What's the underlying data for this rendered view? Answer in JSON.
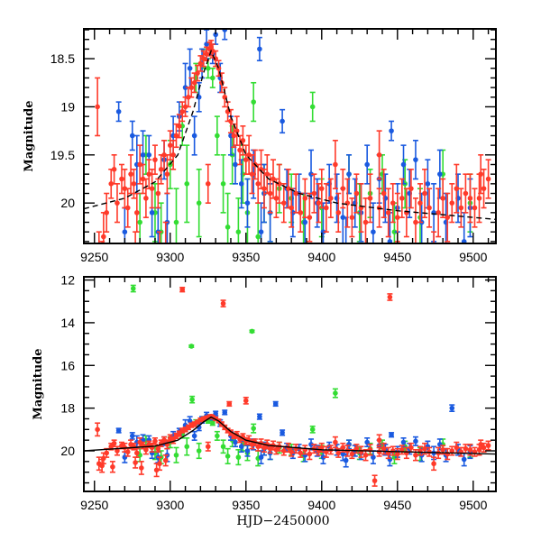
{
  "chart_data": [
    {
      "type": "scatter",
      "panel": "top",
      "title": "",
      "xlabel": "",
      "ylabel": "Magnitude",
      "xlim": [
        9243,
        9515
      ],
      "ylim": [
        20.42,
        18.19
      ],
      "y_inverted": true,
      "x_ticks": [
        9250,
        9300,
        9350,
        9400,
        9450,
        9500
      ],
      "x_tick_labels": [
        "9250",
        "9300",
        "9350",
        "9400",
        "9450",
        "9500"
      ],
      "y_ticks": [
        18.5,
        19,
        19.5,
        20
      ],
      "y_tick_labels": [
        "18.5",
        "19",
        "19.5",
        "20"
      ],
      "grid": false,
      "fit_line": {
        "name": "model",
        "style": "dashed-black",
        "x": [
          9243,
          9270,
          9290,
          9305,
          9315,
          9322,
          9327,
          9332,
          9340,
          9350,
          9365,
          9385,
          9410,
          9450,
          9515
        ],
        "y": [
          20.06,
          19.95,
          19.78,
          19.5,
          19.05,
          18.65,
          18.42,
          18.6,
          19.1,
          19.5,
          19.75,
          19.9,
          20.0,
          20.08,
          20.17
        ]
      }
    },
    {
      "type": "scatter",
      "panel": "bottom",
      "title": "",
      "xlabel": "HJD−2450000",
      "ylabel": "Magnitude",
      "xlim": [
        9243,
        9515
      ],
      "ylim": [
        21.9,
        11.85
      ],
      "y_inverted": true,
      "x_ticks": [
        9250,
        9300,
        9350,
        9400,
        9450,
        9500
      ],
      "x_tick_labels": [
        "9250",
        "9300",
        "9350",
        "9400",
        "9450",
        "9500"
      ],
      "y_ticks": [
        12,
        14,
        16,
        18,
        20
      ],
      "y_tick_labels": [
        "12",
        "14",
        "16",
        "18",
        "20"
      ],
      "grid": false,
      "fit_line": {
        "name": "model",
        "style": "solid-black",
        "x": [
          9243,
          9290,
          9305,
          9315,
          9322,
          9327,
          9332,
          9340,
          9350,
          9365,
          9400,
          9515
        ],
        "y": [
          20.0,
          19.78,
          19.5,
          19.05,
          18.65,
          18.42,
          18.6,
          19.1,
          19.5,
          19.75,
          19.95,
          20.15
        ]
      }
    }
  ],
  "series": [
    {
      "name": "red",
      "color": "#ff3a2a",
      "points": [
        [
          9252,
          19.0,
          0.3
        ],
        [
          9256,
          20.35,
          0.25
        ],
        [
          9258,
          20.1,
          0.2
        ],
        [
          9261,
          19.8,
          0.15
        ],
        [
          9263,
          19.65,
          0.15
        ],
        [
          9265,
          20.0,
          0.2
        ],
        [
          9268,
          19.75,
          0.15
        ],
        [
          9270,
          19.85,
          0.2
        ],
        [
          9272,
          20.05,
          0.2
        ],
        [
          9274,
          19.7,
          0.2
        ],
        [
          9276,
          19.8,
          0.15
        ],
        [
          9278,
          20.1,
          0.2
        ],
        [
          9280,
          19.6,
          0.2
        ],
        [
          9282,
          19.75,
          0.15
        ],
        [
          9284,
          19.95,
          0.2
        ],
        [
          9286,
          19.7,
          0.15
        ],
        [
          9288,
          19.85,
          0.2
        ],
        [
          9290,
          19.55,
          0.15
        ],
        [
          9292,
          19.9,
          0.15
        ],
        [
          9294,
          19.65,
          0.15
        ],
        [
          9296,
          19.5,
          0.15
        ],
        [
          9298,
          19.7,
          0.2
        ],
        [
          9300,
          19.4,
          0.15
        ],
        [
          9302,
          19.5,
          0.15
        ],
        [
          9304,
          19.3,
          0.12
        ],
        [
          9306,
          19.2,
          0.12
        ],
        [
          9308,
          19.05,
          0.1
        ],
        [
          9310,
          19.0,
          0.1
        ],
        [
          9312,
          18.9,
          0.1
        ],
        [
          9314,
          18.8,
          0.1
        ],
        [
          9316,
          18.75,
          0.1
        ],
        [
          9318,
          18.65,
          0.08
        ],
        [
          9320,
          18.55,
          0.08
        ],
        [
          9322,
          18.5,
          0.08
        ],
        [
          9324,
          18.45,
          0.07
        ],
        [
          9326,
          18.4,
          0.07
        ],
        [
          9327,
          18.38,
          0.07
        ],
        [
          9328,
          18.42,
          0.07
        ],
        [
          9330,
          18.5,
          0.08
        ],
        [
          9332,
          18.6,
          0.08
        ],
        [
          9334,
          18.75,
          0.1
        ],
        [
          9336,
          18.9,
          0.1
        ],
        [
          9338,
          19.05,
          0.1
        ],
        [
          9340,
          19.15,
          0.12
        ],
        [
          9342,
          19.3,
          0.12
        ],
        [
          9344,
          19.25,
          0.15
        ],
        [
          9346,
          19.45,
          0.15
        ],
        [
          9348,
          19.35,
          0.15
        ],
        [
          9350,
          19.55,
          0.15
        ],
        [
          9352,
          19.5,
          0.2
        ],
        [
          9354,
          19.7,
          0.2
        ],
        [
          9356,
          19.6,
          0.15
        ],
        [
          9358,
          19.8,
          0.2
        ],
        [
          9360,
          19.65,
          0.2
        ],
        [
          9362,
          19.85,
          0.2
        ],
        [
          9364,
          19.7,
          0.2
        ],
        [
          9366,
          19.9,
          0.2
        ],
        [
          9368,
          19.75,
          0.2
        ],
        [
          9370,
          19.95,
          0.2
        ],
        [
          9372,
          19.8,
          0.2
        ],
        [
          9375,
          20.0,
          0.2
        ],
        [
          9378,
          19.85,
          0.2
        ],
        [
          9380,
          20.05,
          0.2
        ],
        [
          9383,
          19.9,
          0.2
        ],
        [
          9386,
          20.1,
          0.2
        ],
        [
          9389,
          19.95,
          0.2
        ],
        [
          9392,
          20.15,
          0.25
        ],
        [
          9395,
          19.9,
          0.2
        ],
        [
          9398,
          20.0,
          0.2
        ],
        [
          9400,
          19.85,
          0.2
        ],
        [
          9403,
          20.05,
          0.25
        ],
        [
          9406,
          19.95,
          0.2
        ],
        [
          9409,
          19.6,
          0.25
        ],
        [
          9411,
          20.1,
          0.2
        ],
        [
          9414,
          19.85,
          0.2
        ],
        [
          9417,
          20.0,
          0.25
        ],
        [
          9420,
          20.15,
          0.2
        ],
        [
          9423,
          19.9,
          0.2
        ],
        [
          9426,
          20.05,
          0.25
        ],
        [
          9429,
          20.2,
          0.25
        ],
        [
          9432,
          19.95,
          0.25
        ],
        [
          9435,
          21.4,
          0.25
        ],
        [
          9438,
          20.05,
          0.2
        ],
        [
          9441,
          19.9,
          0.25
        ],
        [
          9444,
          20.1,
          0.25
        ],
        [
          9447,
          20.0,
          0.2
        ],
        [
          9450,
          20.15,
          0.25
        ],
        [
          9453,
          19.95,
          0.2
        ],
        [
          9456,
          20.1,
          0.25
        ],
        [
          9459,
          19.85,
          0.2
        ],
        [
          9462,
          20.2,
          0.25
        ],
        [
          9465,
          20.0,
          0.2
        ],
        [
          9468,
          19.9,
          0.25
        ],
        [
          9471,
          20.05,
          0.2
        ],
        [
          9474,
          20.6,
          0.3
        ],
        [
          9477,
          20.1,
          0.25
        ],
        [
          9480,
          19.95,
          0.2
        ],
        [
          9483,
          20.15,
          0.25
        ],
        [
          9486,
          20.0,
          0.2
        ],
        [
          9489,
          19.85,
          0.25
        ],
        [
          9492,
          20.05,
          0.2
        ],
        [
          9495,
          19.9,
          0.2
        ],
        [
          9498,
          19.95,
          0.25
        ],
        [
          9501,
          20.05,
          0.2
        ],
        [
          9504,
          19.95,
          0.25
        ],
        [
          9507,
          19.85,
          0.2
        ],
        [
          9510,
          19.75,
          0.2
        ],
        [
          9253,
          20.6,
          0.3
        ],
        [
          9255,
          20.7,
          0.3
        ],
        [
          9262,
          20.75,
          0.25
        ],
        [
          9277,
          20.55,
          0.25
        ],
        [
          9281,
          20.8,
          0.3
        ],
        [
          9291,
          20.9,
          0.3
        ],
        [
          9293,
          20.6,
          0.3
        ],
        [
          9297,
          20.45,
          0.25
        ],
        [
          9308,
          12.45,
          0.1
        ],
        [
          9335,
          13.1,
          0.15
        ],
        [
          9339,
          17.8,
          0.1
        ],
        [
          9350,
          17.65,
          0.15
        ],
        [
          9445,
          12.8,
          0.15
        ],
        [
          9325,
          19.8,
          0.2
        ],
        [
          9438,
          19.5,
          0.25
        ],
        [
          9505,
          19.7,
          0.2
        ]
      ]
    },
    {
      "name": "blue",
      "color": "#1a5ae0",
      "points": [
        [
          9266,
          19.05,
          0.1
        ],
        [
          9270,
          20.3,
          0.25
        ],
        [
          9275,
          19.3,
          0.15
        ],
        [
          9278,
          19.6,
          0.3
        ],
        [
          9282,
          19.5,
          0.25
        ],
        [
          9286,
          19.5,
          0.2
        ],
        [
          9288,
          20.1,
          0.25
        ],
        [
          9292,
          20.3,
          0.25
        ],
        [
          9296,
          19.55,
          0.2
        ],
        [
          9298,
          20.2,
          0.3
        ],
        [
          9302,
          19.3,
          0.2
        ],
        [
          9306,
          19.1,
          0.15
        ],
        [
          9310,
          18.8,
          0.25
        ],
        [
          9313,
          18.6,
          0.2
        ],
        [
          9316,
          19.3,
          0.2
        ],
        [
          9319,
          18.9,
          0.15
        ],
        [
          9321,
          18.55,
          0.15
        ],
        [
          9324,
          18.35,
          0.15
        ],
        [
          9328,
          18.45,
          0.1
        ],
        [
          9333,
          18.7,
          0.15
        ],
        [
          9336,
          18.2,
          0.1
        ],
        [
          9340,
          19.3,
          0.2
        ],
        [
          9343,
          19.6,
          0.2
        ],
        [
          9347,
          19.8,
          0.25
        ],
        [
          9351,
          20.0,
          0.25
        ],
        [
          9355,
          19.7,
          0.25
        ],
        [
          9359,
          18.4,
          0.12
        ],
        [
          9362,
          19.9,
          0.3
        ],
        [
          9366,
          20.1,
          0.3
        ],
        [
          9369.6,
          17.8,
          0.1
        ],
        [
          9374,
          19.15,
          0.12
        ],
        [
          9377,
          19.85,
          0.2
        ],
        [
          9381,
          20.1,
          0.25
        ],
        [
          9385,
          19.9,
          0.2
        ],
        [
          9389,
          20.2,
          0.3
        ],
        [
          9393,
          19.7,
          0.25
        ],
        [
          9397,
          20.0,
          0.25
        ],
        [
          9401,
          20.3,
          0.3
        ],
        [
          9405,
          19.8,
          0.2
        ],
        [
          9410,
          19.95,
          0.25
        ],
        [
          9414,
          20.15,
          0.3
        ],
        [
          9418,
          19.7,
          0.2
        ],
        [
          9422,
          20.0,
          0.25
        ],
        [
          9426,
          20.1,
          0.3
        ],
        [
          9430,
          19.6,
          0.2
        ],
        [
          9434,
          20.3,
          0.3
        ],
        [
          9438,
          19.75,
          0.25
        ],
        [
          9442,
          19.95,
          0.25
        ],
        [
          9446,
          19.25,
          0.1
        ],
        [
          9450,
          20.05,
          0.25
        ],
        [
          9454,
          19.6,
          0.2
        ],
        [
          9458,
          19.9,
          0.25
        ],
        [
          9462,
          19.55,
          0.2
        ],
        [
          9466,
          20.2,
          0.3
        ],
        [
          9470,
          19.8,
          0.25
        ],
        [
          9474,
          20.1,
          0.3
        ],
        [
          9478,
          19.7,
          0.25
        ],
        [
          9482,
          20.2,
          0.3
        ],
        [
          9486,
          18.0,
          0.15
        ],
        [
          9490,
          19.95,
          0.25
        ],
        [
          9494,
          20.4,
          0.3
        ],
        [
          9498,
          20.05,
          0.3
        ],
        [
          9360,
          20.3,
          0.3
        ],
        [
          9330,
          18.25,
          0.1
        ],
        [
          9416,
          20.45,
          0.3
        ],
        [
          9445,
          20.4,
          0.3
        ]
      ]
    },
    {
      "name": "green",
      "color": "#33dd33",
      "points": [
        [
          9275.6,
          12.4,
          0.15
        ],
        [
          9280,
          20.2,
          0.3
        ],
        [
          9284,
          19.5,
          0.2
        ],
        [
          9290,
          20.1,
          0.3
        ],
        [
          9294,
          20.3,
          0.3
        ],
        [
          9300,
          19.6,
          0.25
        ],
        [
          9304,
          20.2,
          0.35
        ],
        [
          9308,
          19.2,
          0.2
        ],
        [
          9311,
          19.8,
          0.4
        ],
        [
          9314,
          15.1,
          0.05
        ],
        [
          9314.5,
          17.6,
          0.15
        ],
        [
          9317,
          18.7,
          0.15
        ],
        [
          9319,
          20.0,
          0.35
        ],
        [
          9322,
          18.5,
          0.1
        ],
        [
          9325,
          18.6,
          0.1
        ],
        [
          9328,
          18.7,
          0.1
        ],
        [
          9331,
          19.3,
          0.2
        ],
        [
          9335,
          19.8,
          0.3
        ],
        [
          9338,
          20.25,
          0.35
        ],
        [
          9341,
          19.5,
          0.3
        ],
        [
          9345,
          20.3,
          0.35
        ],
        [
          9348,
          19.7,
          0.3
        ],
        [
          9351,
          20.1,
          0.35
        ],
        [
          9354,
          14.4,
          0.05
        ],
        [
          9355,
          18.95,
          0.2
        ],
        [
          9358,
          20.35,
          0.35
        ],
        [
          9362,
          19.9,
          0.3
        ],
        [
          9366,
          20.1,
          0.3
        ],
        [
          9372,
          19.85,
          0.25
        ],
        [
          9380,
          19.95,
          0.25
        ],
        [
          9388,
          20.2,
          0.3
        ],
        [
          9394,
          19.0,
          0.15
        ],
        [
          9400,
          20.05,
          0.3
        ],
        [
          9409,
          17.3,
          0.2
        ],
        [
          9418,
          19.7,
          0.2
        ],
        [
          9425,
          20.1,
          0.3
        ],
        [
          9432,
          19.9,
          0.25
        ],
        [
          9440,
          19.7,
          0.2
        ],
        [
          9448,
          20.3,
          0.3
        ],
        [
          9455,
          19.8,
          0.25
        ],
        [
          9465,
          20.15,
          0.3
        ],
        [
          9480,
          19.7,
          0.25
        ],
        [
          9498,
          20.0,
          0.3
        ]
      ]
    }
  ]
}
